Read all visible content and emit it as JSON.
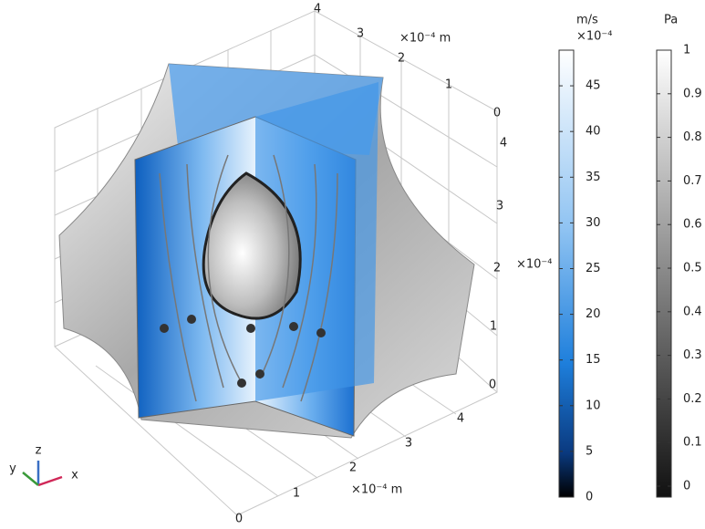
{
  "plot": {
    "axes": {
      "top": {
        "ticks": [
          "4",
          "3",
          "2",
          "1",
          "0"
        ],
        "unit": "×10⁻⁴ m"
      },
      "right": {
        "ticks": [
          "4",
          "3",
          "2",
          "1",
          "0"
        ]
      },
      "bottom": {
        "ticks": [
          "4",
          "3",
          "2",
          "1",
          "0"
        ],
        "unit": "×10⁻⁴ m"
      }
    },
    "colorbars": [
      {
        "unit": "m/s",
        "multiplier": "×10⁻⁴",
        "side_multiplier": "×10⁻⁴",
        "lim": [
          0,
          48.9
        ],
        "ticks": [
          0,
          5,
          10,
          15,
          20,
          25,
          30,
          35,
          40,
          45
        ]
      },
      {
        "unit": "Pa",
        "lim": [
          -0.025,
          1
        ],
        "ticks": [
          0,
          0.1,
          0.2,
          0.3,
          0.4,
          0.5,
          0.6,
          0.7,
          0.8,
          0.9,
          1
        ]
      }
    ],
    "triad": {
      "x": "x",
      "y": "y",
      "z": "z"
    }
  }
}
